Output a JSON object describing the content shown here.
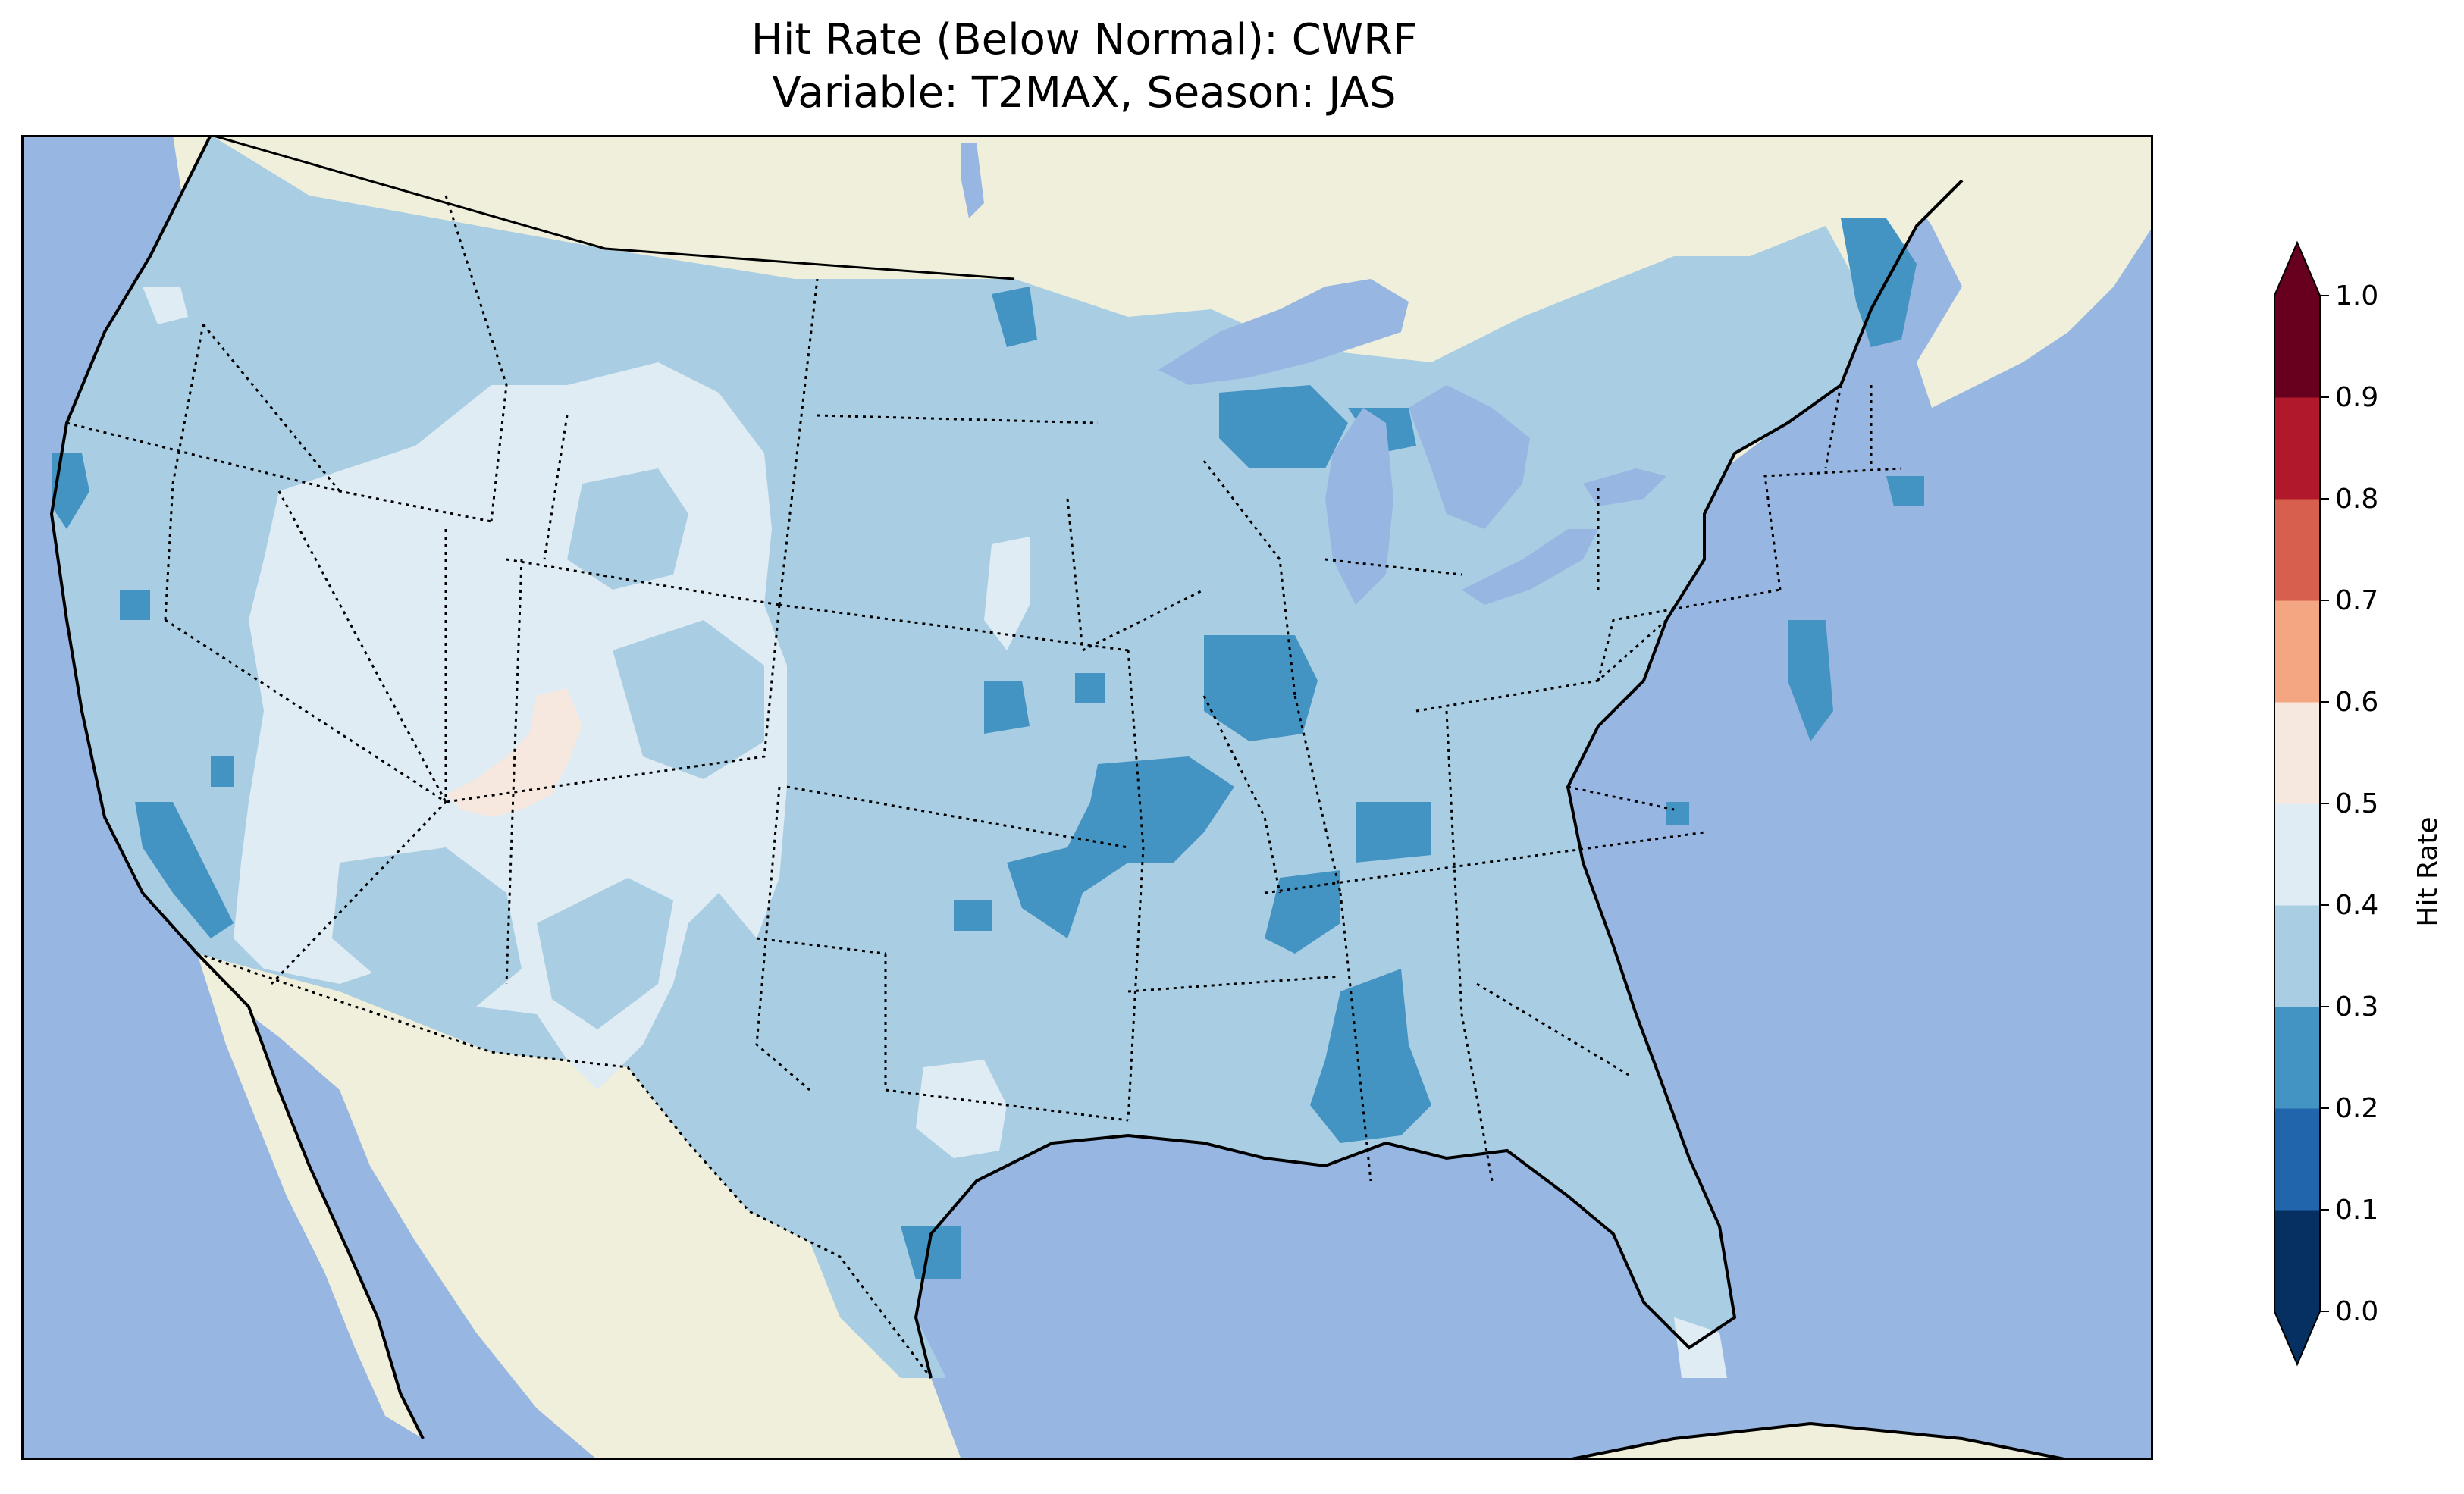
{
  "title_line1": "Hit Rate (Below Normal): CWRF",
  "title_line2": "Variable: T2MAX, Season: JAS",
  "colors": {
    "ocean": "#97b6e1",
    "land": "#efefdb",
    "lake": "#97b6e1"
  },
  "colorbar": {
    "label": "Hit Rate",
    "ticks": [
      "0.0",
      "0.1",
      "0.2",
      "0.3",
      "0.4",
      "0.5",
      "0.6",
      "0.7",
      "0.8",
      "0.9",
      "1.0"
    ],
    "bins": [
      {
        "range": [
          0.0,
          0.1
        ],
        "color": "#053061"
      },
      {
        "range": [
          0.1,
          0.2
        ],
        "color": "#2166ac"
      },
      {
        "range": [
          0.2,
          0.3
        ],
        "color": "#4393c3"
      },
      {
        "range": [
          0.3,
          0.4
        ],
        "color": "#a9cde3"
      },
      {
        "range": [
          0.4,
          0.5
        ],
        "color": "#e0ecf4"
      },
      {
        "range": [
          0.5,
          0.6
        ],
        "color": "#f7e8df"
      },
      {
        "range": [
          0.6,
          0.7
        ],
        "color": "#f4a582"
      },
      {
        "range": [
          0.7,
          0.8
        ],
        "color": "#d6604d"
      },
      {
        "range": [
          0.8,
          0.9
        ],
        "color": "#b2182b"
      },
      {
        "range": [
          0.9,
          1.0
        ],
        "color": "#67001f"
      }
    ],
    "extend": "both"
  },
  "regions": {
    "domain_fill": "0.3-0.4",
    "patches_0_2_0_3": [
      "Northern California coast",
      "Southern California coast",
      "Eastern North Dakota",
      "Northern Wisconsin",
      "Upper Michigan",
      "Maine",
      "Delaware",
      "Missouri / Arkansas",
      "Illinois",
      "Kentucky",
      "Alabama",
      "Mississippi",
      "Southern Texas",
      "Kansas"
    ],
    "patches_0_4_0_5": [
      "Great Basin",
      "Wyoming",
      "Colorado",
      "Arizona",
      "New Mexico",
      "Montana",
      "Western Texas",
      "Southern Florida"
    ],
    "patches_0_5_0_6": [
      "Southern Utah / Four Corners"
    ]
  }
}
